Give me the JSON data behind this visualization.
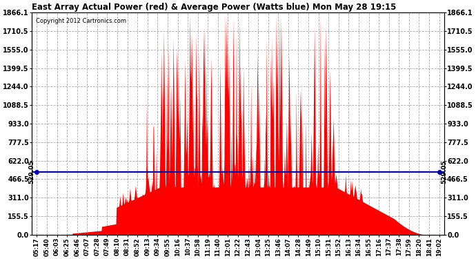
{
  "title": "East Array Actual Power (red) & Average Power (Watts blue) Mon May 28 19:15",
  "copyright": "Copyright 2012 Cartronics.com",
  "avg_power": 529.05,
  "y_max": 1866.1,
  "y_ticks": [
    0.0,
    155.5,
    311.0,
    466.5,
    622.0,
    777.5,
    933.0,
    1088.5,
    1244.0,
    1399.5,
    1555.0,
    1710.5,
    1866.1
  ],
  "x_labels": [
    "05:17",
    "05:40",
    "06:03",
    "06:25",
    "06:46",
    "07:07",
    "07:28",
    "07:49",
    "08:10",
    "08:31",
    "08:52",
    "09:13",
    "09:34",
    "09:55",
    "10:16",
    "10:37",
    "10:58",
    "11:19",
    "11:40",
    "12:01",
    "12:22",
    "12:43",
    "13:04",
    "13:25",
    "13:46",
    "14:07",
    "14:28",
    "14:49",
    "15:10",
    "15:31",
    "15:52",
    "16:13",
    "16:34",
    "16:55",
    "17:16",
    "17:37",
    "17:38",
    "17:59",
    "18:20",
    "18:41",
    "19:02"
  ],
  "bg_color": "#ffffff",
  "fill_color": "#ff0000",
  "line_color": "#0000aa",
  "grid_color": "#aaaaaa",
  "figsize": [
    6.9,
    3.75
  ],
  "dpi": 100
}
